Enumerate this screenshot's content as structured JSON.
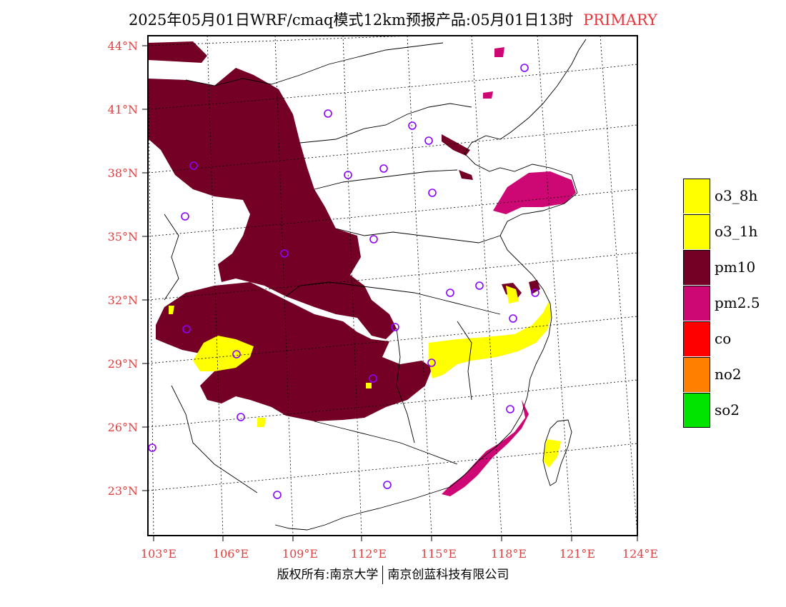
{
  "title": {
    "main": "2025年05月01日WRF/cmaq模式12km预报产品:05月01日13时",
    "tag": "PRIMARY"
  },
  "colors": {
    "pm10": "#750025",
    "pm25": "#cd0774",
    "o3": "#ffff00",
    "co": "#ff0000",
    "no2": "#ff7f00",
    "so2": "#00e400",
    "label": "#e04040",
    "station": "#8b00ff"
  },
  "axes": {
    "lat_labels": [
      "44°N",
      "41°N",
      "38°N",
      "35°N",
      "32°N",
      "29°N",
      "26°N",
      "23°N"
    ],
    "lon_labels": [
      "103°E",
      "106°E",
      "109°E",
      "112°E",
      "115°E",
      "118°E",
      "121°E",
      "124°E"
    ]
  },
  "legend": [
    {
      "label": "o3_8h",
      "color": "#ffff00"
    },
    {
      "label": "o3_1h",
      "color": "#ffff00"
    },
    {
      "label": "pm10",
      "color": "#750025"
    },
    {
      "label": "pm2.5",
      "color": "#cd0774"
    },
    {
      "label": "co",
      "color": "#ff0000"
    },
    {
      "label": "no2",
      "color": "#ff7f00"
    },
    {
      "label": "so2",
      "color": "#00e400"
    }
  ],
  "footer": {
    "left": "版权所有:南京大学",
    "right": "南京创蓝科技有限公司"
  }
}
